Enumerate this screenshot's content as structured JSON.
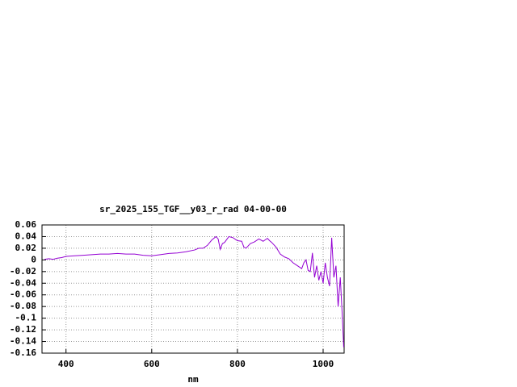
{
  "chart_data": {
    "type": "line",
    "title": "sr_2025_155_TGF__y03_r_rad 04-00-00",
    "x_label": "nm",
    "xlim": [
      344,
      1049
    ],
    "xticks": [
      400,
      600,
      800,
      1000
    ],
    "ylim": [
      -0.16,
      0.06
    ],
    "yticks": [
      0.06,
      0.04,
      0.02,
      0,
      -0.02,
      -0.04,
      -0.06,
      -0.08,
      -0.1,
      -0.12,
      -0.14,
      -0.16
    ],
    "grid": true,
    "series": [
      {
        "color": "#9400d3",
        "x": [
          350,
          360,
          370,
          380,
          390,
          400,
          420,
          440,
          460,
          480,
          500,
          520,
          540,
          560,
          580,
          600,
          620,
          640,
          660,
          680,
          700,
          710,
          720,
          730,
          740,
          750,
          755,
          760,
          765,
          770,
          780,
          790,
          800,
          810,
          815,
          820,
          830,
          840,
          850,
          860,
          870,
          875,
          880,
          890,
          900,
          910,
          920,
          930,
          940,
          950,
          955,
          960,
          965,
          970,
          975,
          980,
          985,
          990,
          995,
          1000,
          1005,
          1010,
          1015,
          1020,
          1025,
          1030,
          1035,
          1040,
          1045,
          1048
        ],
        "values": [
          0.001,
          0.002,
          0.001,
          0.003,
          0.004,
          0.006,
          0.007,
          0.008,
          0.009,
          0.01,
          0.01,
          0.011,
          0.01,
          0.01,
          0.008,
          0.007,
          0.009,
          0.011,
          0.012,
          0.014,
          0.017,
          0.02,
          0.02,
          0.025,
          0.034,
          0.04,
          0.036,
          0.018,
          0.028,
          0.03,
          0.04,
          0.038,
          0.033,
          0.032,
          0.022,
          0.02,
          0.028,
          0.031,
          0.036,
          0.032,
          0.037,
          0.033,
          0.03,
          0.022,
          0.01,
          0.005,
          0.002,
          -0.005,
          -0.01,
          -0.015,
          -0.005,
          0.0,
          -0.018,
          -0.02,
          0.012,
          -0.03,
          -0.01,
          -0.035,
          -0.02,
          -0.04,
          -0.005,
          -0.03,
          -0.045,
          0.038,
          -0.03,
          -0.01,
          -0.08,
          -0.03,
          -0.1,
          -0.15
        ]
      }
    ]
  }
}
